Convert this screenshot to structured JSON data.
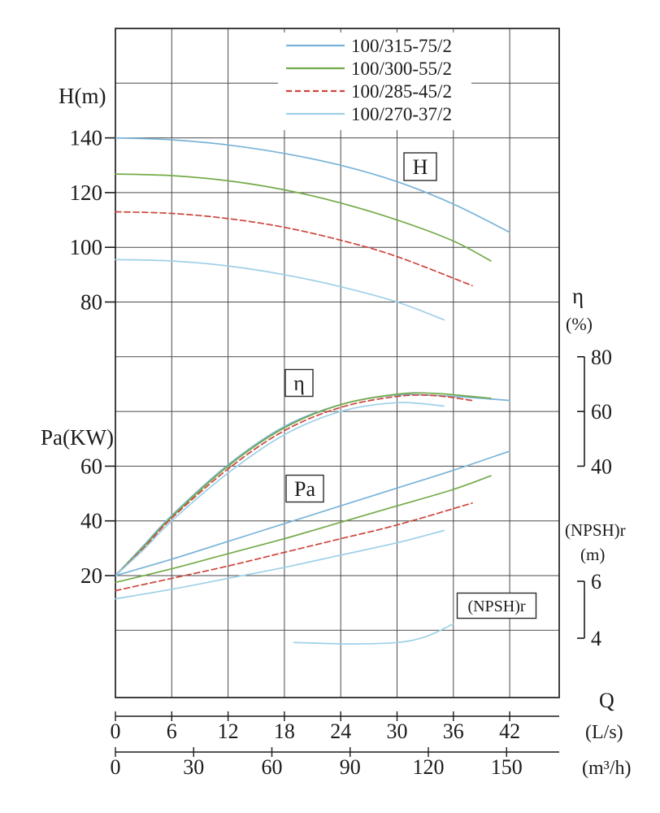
{
  "title": "Pump performance curves: H, η, Pa, (NPSH)r versus Q",
  "colors": {
    "grid": "#4a4a4a",
    "border": "#2b2b2b",
    "text": "#1b1b1b",
    "background": "#ffffff"
  },
  "legend": {
    "items": [
      {
        "label": "100/315-75/2",
        "color": "#79b3d8",
        "dash": ""
      },
      {
        "label": "100/300-55/2",
        "color": "#74ab49",
        "dash": ""
      },
      {
        "label": "100/285-45/2",
        "color": "#cd453c",
        "dash": "7 4"
      },
      {
        "label": "100/270-37/2",
        "color": "#9ed0e8",
        "dash": ""
      }
    ]
  },
  "axis_labels": {
    "head": "H(m)",
    "power": "Pa(KW)",
    "eta": "η",
    "eta_unit": "(%)",
    "npsh": "(NPSH)r",
    "npsh_unit": "(m)",
    "flow": "Q",
    "flow_unit_ls": "(L/s)",
    "flow_unit_m3h": "(m³/h)"
  },
  "curve_boxes": {
    "head": "H",
    "eta": "η",
    "power": "Pa",
    "npsh": "(NPSH)r"
  },
  "ticks": {
    "head": [
      "140",
      "120",
      "100",
      "80"
    ],
    "power": [
      "60",
      "40",
      "20"
    ],
    "eta": [
      "80",
      "60",
      "40"
    ],
    "npsh": [
      "6",
      "4"
    ],
    "flow_ls": [
      "0",
      "6",
      "12",
      "18",
      "24",
      "30",
      "36",
      "42"
    ],
    "flow_m3h": [
      "0",
      "30",
      "60",
      "90",
      "120",
      "150"
    ]
  },
  "chart_data": {
    "type": "line",
    "title": "Pump performance curves",
    "xlabel": "Q",
    "x_units": [
      "L/s",
      "m³/h"
    ],
    "x_range_ls": [
      0,
      47
    ],
    "grid": true,
    "legend_position": "top-center",
    "models": [
      "100/315-75/2",
      "100/300-55/2",
      "100/285-45/2",
      "100/270-37/2"
    ],
    "groups": [
      {
        "quantity": "H",
        "unit": "m",
        "ylim": [
          70,
          145
        ],
        "series": [
          {
            "model": "100/315-75/2",
            "legend_index": 0,
            "points": [
              [
                0,
                140
              ],
              [
                6,
                139.3
              ],
              [
                12,
                137.4
              ],
              [
                18,
                134.3
              ],
              [
                24,
                130
              ],
              [
                30,
                124
              ],
              [
                36,
                115.8
              ],
              [
                42,
                105.5
              ]
            ]
          },
          {
            "model": "100/300-55/2",
            "legend_index": 1,
            "points": [
              [
                0,
                126.8
              ],
              [
                6,
                126.2
              ],
              [
                12,
                124.3
              ],
              [
                18,
                121
              ],
              [
                24,
                116.2
              ],
              [
                30,
                110
              ],
              [
                36,
                102.3
              ],
              [
                40,
                95
              ]
            ]
          },
          {
            "model": "100/285-45/2",
            "legend_index": 2,
            "points": [
              [
                0,
                113
              ],
              [
                6,
                112.4
              ],
              [
                12,
                110.5
              ],
              [
                18,
                107.3
              ],
              [
                24,
                102.6
              ],
              [
                30,
                96.6
              ],
              [
                38,
                86
              ]
            ]
          },
          {
            "model": "100/270-37/2",
            "legend_index": 3,
            "points": [
              [
                0,
                95.5
              ],
              [
                6,
                95
              ],
              [
                12,
                93.2
              ],
              [
                18,
                90
              ],
              [
                24,
                85.6
              ],
              [
                30,
                80
              ],
              [
                35,
                73.5
              ]
            ]
          }
        ]
      },
      {
        "quantity": "eta",
        "unit": "%",
        "ylim": [
          0,
          80
        ],
        "series": [
          {
            "model": "100/315-75/2",
            "legend_index": 0,
            "points": [
              [
                0,
                0
              ],
              [
                3,
                11
              ],
              [
                6,
                22
              ],
              [
                12,
                40.5
              ],
              [
                18,
                54.5
              ],
              [
                24,
                62.5
              ],
              [
                30,
                66
              ],
              [
                36,
                65.5
              ],
              [
                42,
                64
              ]
            ]
          },
          {
            "model": "100/300-55/2",
            "legend_index": 1,
            "points": [
              [
                0,
                0
              ],
              [
                3,
                10.5
              ],
              [
                6,
                21.5
              ],
              [
                12,
                40
              ],
              [
                18,
                54
              ],
              [
                24,
                62.5
              ],
              [
                30,
                66.3
              ],
              [
                34,
                66.6
              ],
              [
                40,
                64.8
              ]
            ]
          },
          {
            "model": "100/285-45/2",
            "legend_index": 2,
            "points": [
              [
                0,
                0
              ],
              [
                3,
                10
              ],
              [
                6,
                21
              ],
              [
                12,
                39
              ],
              [
                18,
                53
              ],
              [
                24,
                61.5
              ],
              [
                30,
                65.5
              ],
              [
                34,
                65.8
              ],
              [
                38,
                64
              ]
            ]
          },
          {
            "model": "100/270-37/2",
            "legend_index": 3,
            "points": [
              [
                0,
                0
              ],
              [
                3,
                9.5
              ],
              [
                6,
                20
              ],
              [
                12,
                37.5
              ],
              [
                18,
                51.5
              ],
              [
                24,
                60
              ],
              [
                30,
                63.2
              ],
              [
                35,
                62
              ]
            ]
          }
        ]
      },
      {
        "quantity": "Pa",
        "unit": "KW",
        "ylim": [
          0,
          70
        ],
        "series": [
          {
            "model": "100/315-75/2",
            "legend_index": 0,
            "points": [
              [
                0,
                20
              ],
              [
                6,
                26
              ],
              [
                12,
                32.5
              ],
              [
                18,
                39
              ],
              [
                24,
                45.5
              ],
              [
                30,
                52
              ],
              [
                36,
                58.5
              ],
              [
                42,
                65.5
              ]
            ]
          },
          {
            "model": "100/300-55/2",
            "legend_index": 1,
            "points": [
              [
                0,
                17.5
              ],
              [
                6,
                22.5
              ],
              [
                12,
                28
              ],
              [
                18,
                33.5
              ],
              [
                24,
                39.5
              ],
              [
                30,
                45.5
              ],
              [
                36,
                51.5
              ],
              [
                40,
                56.5
              ]
            ]
          },
          {
            "model": "100/285-45/2",
            "legend_index": 2,
            "points": [
              [
                0,
                14.5
              ],
              [
                6,
                19
              ],
              [
                12,
                23.5
              ],
              [
                18,
                28.5
              ],
              [
                24,
                33.5
              ],
              [
                30,
                38.5
              ],
              [
                38,
                46.5
              ]
            ]
          },
          {
            "model": "100/270-37/2",
            "legend_index": 3,
            "points": [
              [
                0,
                11.5
              ],
              [
                6,
                15
              ],
              [
                12,
                19
              ],
              [
                18,
                23
              ],
              [
                24,
                27.5
              ],
              [
                30,
                32
              ],
              [
                35,
                36.5
              ]
            ]
          }
        ]
      },
      {
        "quantity": "NPSHr",
        "unit": "m",
        "ylim": [
          3,
          7
        ],
        "series": [
          {
            "model": "100/270-37/2",
            "legend_index": 3,
            "points": [
              [
                19,
                3.85
              ],
              [
                25,
                3.8
              ],
              [
                30,
                3.85
              ],
              [
                33,
                4.05
              ],
              [
                36,
                4.5
              ]
            ]
          }
        ]
      }
    ]
  }
}
